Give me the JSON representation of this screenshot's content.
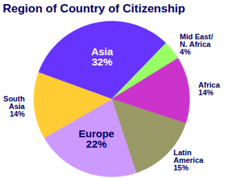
{
  "chart_data": {
    "type": "pie",
    "title": "Region of Country of Citizenship",
    "categories": [
      "Asia",
      "Mid East/ N. Africa",
      "Africa",
      "Latin America",
      "Europe",
      "South Asia"
    ],
    "values": [
      32,
      4,
      14,
      15,
      22,
      14
    ],
    "value_labels": [
      "32%",
      "4%",
      "14%",
      "15%",
      "22%",
      "14%"
    ],
    "colors": [
      "#6633ff",
      "#99ff66",
      "#cc33cc",
      "#999966",
      "#cc99ff",
      "#ffcc33"
    ],
    "data_labels": true
  }
}
